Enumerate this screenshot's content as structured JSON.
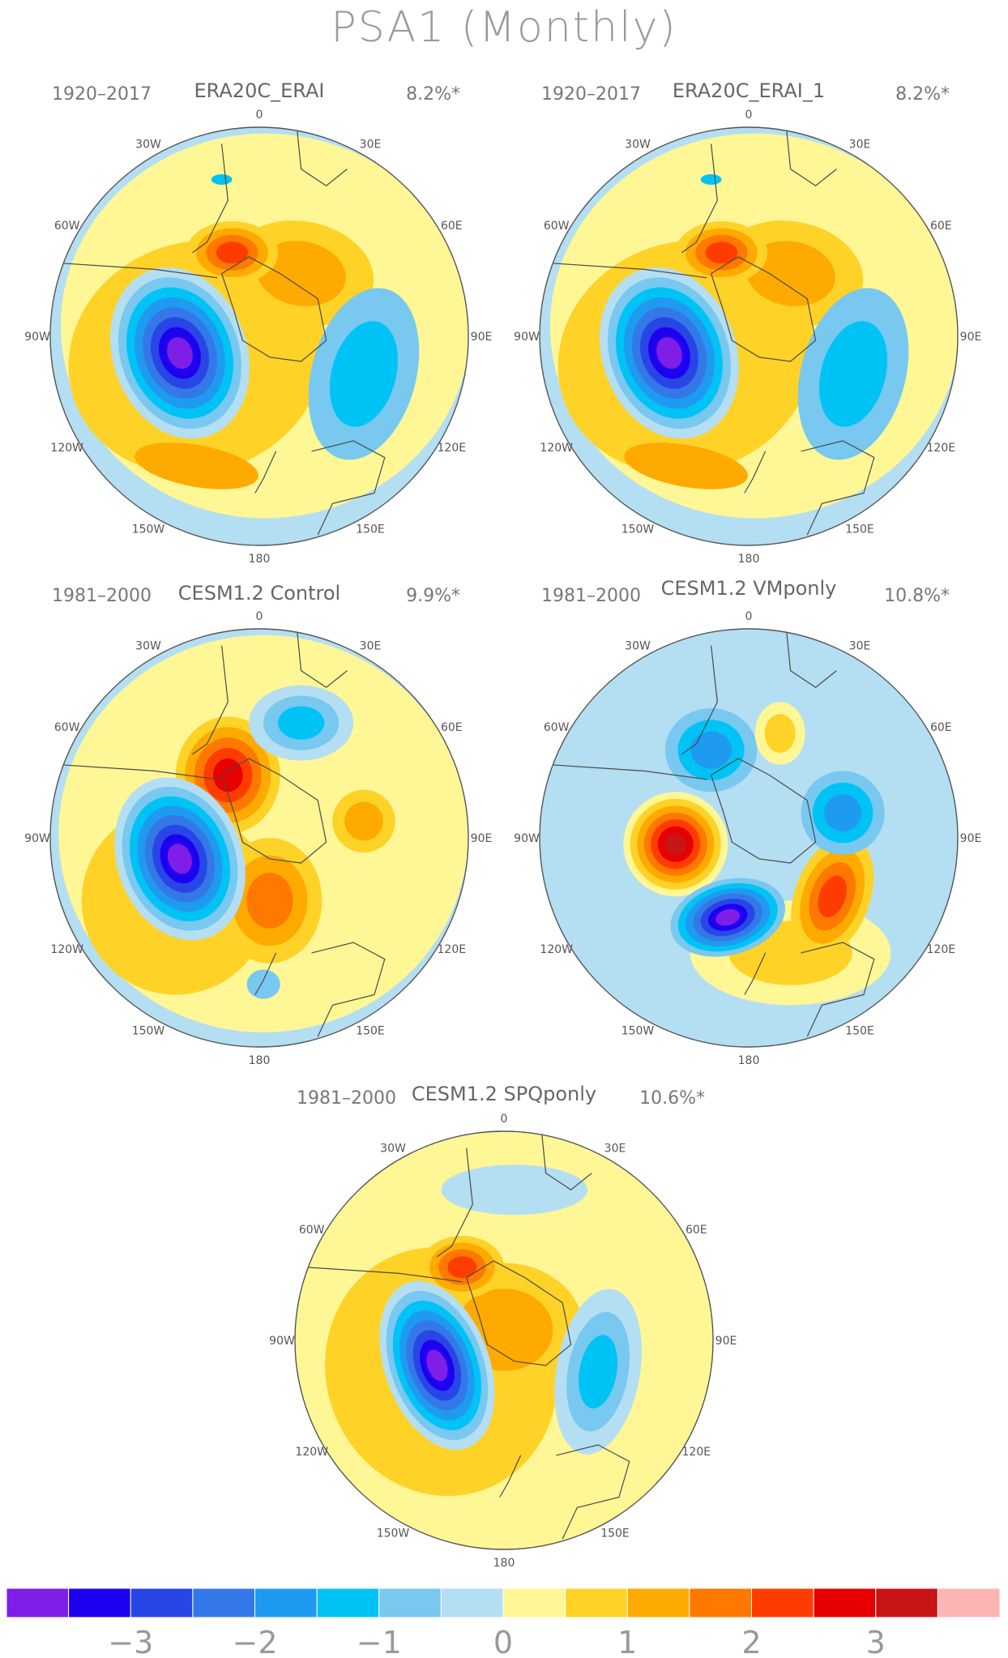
{
  "figure": {
    "title": "PSA1 (Monthly)"
  },
  "lon_labels": [
    "0",
    "30E",
    "60E",
    "90E",
    "120E",
    "150E",
    "180",
    "150W",
    "120W",
    "90W",
    "60W",
    "30W"
  ],
  "panels": [
    {
      "id": "era20c-erai",
      "title": "ERA20C_ERAI",
      "period": "1920–2017",
      "variance": "8.2%*"
    },
    {
      "id": "era20c-erai-1",
      "title": "ERA20C_ERAI_1",
      "period": "1920–2017",
      "variance": "8.2%*"
    },
    {
      "id": "cesm-control",
      "title": "CESM1.2 Control",
      "period": "1981–2000",
      "variance": "9.9%*"
    },
    {
      "id": "cesm-vmponly",
      "title": "CESM1.2 VMponly",
      "period": "1981–2000",
      "variance": "10.8%*"
    },
    {
      "id": "cesm-spqponly",
      "title": "CESM1.2 SPQponly",
      "period": "1981–2000",
      "variance": "10.6%*"
    }
  ],
  "colorbar": {
    "colors": [
      "#7e1ee6",
      "#1e00f0",
      "#2846e6",
      "#3478e8",
      "#1e9bf0",
      "#00c3f5",
      "#78c8f0",
      "#b4def2",
      "#fff796",
      "#ffd228",
      "#ffaa00",
      "#ff7800",
      "#ff3c00",
      "#e60000",
      "#c81414",
      "#ffb4b4"
    ],
    "tick_labels": [
      "−3",
      "−2",
      "−1",
      "0",
      "1",
      "2",
      "3"
    ]
  },
  "chart_data": {
    "type": "heatmap",
    "title": "PSA1 (Monthly)",
    "colorbar_ticks": [
      -3,
      -2,
      -1,
      0,
      1,
      2,
      3
    ],
    "contour_interval": 0.5
  }
}
